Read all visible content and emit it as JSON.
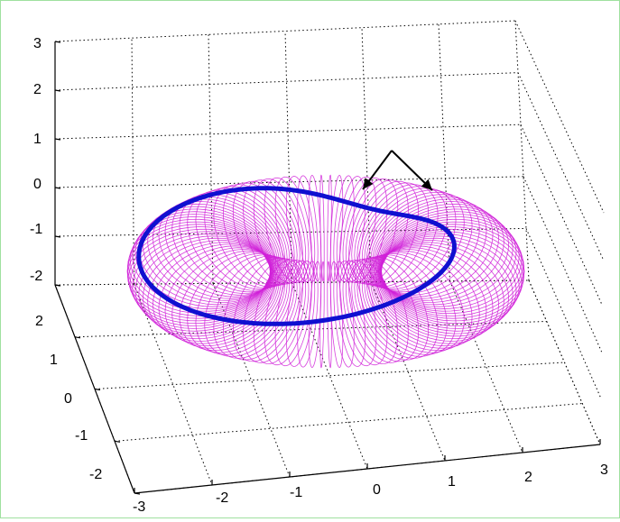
{
  "chart_data": {
    "type": "surface3d",
    "title": "",
    "xlabel": "",
    "ylabel": "",
    "zlabel": "",
    "grid": true,
    "surface": {
      "kind": "torus-mesh",
      "major_radius": 1.6,
      "minor_radius": 0.9,
      "color": "#d020d8"
    },
    "curve": {
      "kind": "closed-curve-on-torus",
      "color": "#1010d0",
      "note_free": true
    },
    "vectors": {
      "color": "#000000",
      "count": 2
    },
    "axes": {
      "x": {
        "range": [
          -3,
          3
        ],
        "ticks": [
          "-3",
          "-2",
          "-1",
          "0",
          "1",
          "2",
          "3"
        ]
      },
      "y": {
        "range": [
          -2,
          2
        ],
        "ticks": [
          "-2",
          "-1",
          "0",
          "1",
          "2"
        ]
      },
      "z": {
        "range": [
          -2,
          3
        ],
        "ticks": [
          "-2",
          "-1",
          "0",
          "1",
          "2",
          "3"
        ]
      }
    }
  }
}
